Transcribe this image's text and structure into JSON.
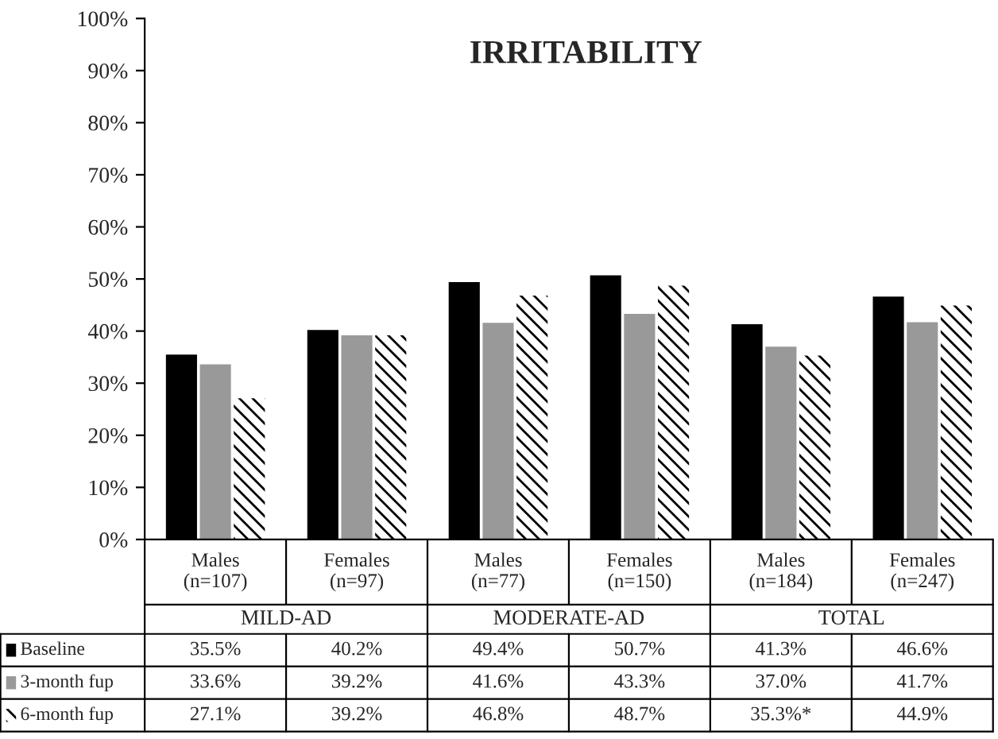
{
  "chart_data": {
    "type": "bar",
    "title": "IRRITABILITY",
    "categories": [
      "Males\n(n=107)",
      "Females\n(n=97)",
      "Males\n(n=77)",
      "Females\n(n=150)",
      "Males\n(n=184)",
      "Females\n(n=247)"
    ],
    "annotations": [
      "MILD-AD",
      "MODERATE-AD",
      "TOTAL"
    ],
    "series": [
      {
        "name": "Baseline",
        "color": "#000000",
        "values": [
          35.5,
          40.2,
          49.4,
          50.7,
          41.3,
          46.6
        ],
        "value_labels": [
          "35.5%",
          "40.2%",
          "49.4%",
          "50.7%",
          "41.3%",
          "46.6%"
        ]
      },
      {
        "name": "3-month fup",
        "color": "#999999",
        "values": [
          33.6,
          39.2,
          41.6,
          43.3,
          37.0,
          41.7
        ],
        "value_labels": [
          "33.6%",
          "39.2%",
          "41.6%",
          "43.3%",
          "37.0%",
          "41.7%"
        ]
      },
      {
        "name": "6-month fup",
        "color": "#ffffff",
        "values": [
          27.1,
          39.2,
          46.8,
          48.7,
          35.3,
          44.9
        ],
        "value_labels": [
          "27.1%",
          "39.2%",
          "46.8%",
          "48.7%",
          "35.3%*",
          "44.9%"
        ]
      }
    ],
    "ylim": [
      0,
      100
    ],
    "yticks": [
      {
        "value": 0,
        "label": "0%"
      },
      {
        "value": 10,
        "label": "10%"
      },
      {
        "value": 20,
        "label": "20%"
      },
      {
        "value": 30,
        "label": "30%"
      },
      {
        "value": 40,
        "label": "40%"
      },
      {
        "value": 50,
        "label": "50%"
      },
      {
        "value": 60,
        "label": "60%"
      },
      {
        "value": 70,
        "label": "70%"
      },
      {
        "value": 80,
        "label": "80%"
      },
      {
        "value": 90,
        "label": "90%"
      },
      {
        "value": 100,
        "label": "100%"
      }
    ],
    "grid": false,
    "legend": "bottom left"
  }
}
